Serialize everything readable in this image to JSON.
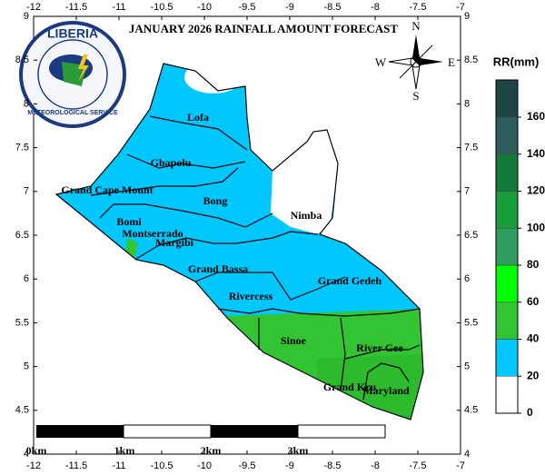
{
  "map": {
    "title": "JANUARY 2026 RAINFALL AMOUNT FORECAST",
    "lonlim": [
      -12,
      -7
    ],
    "lon_ticks": [
      -12,
      -11.5,
      -11,
      -10.5,
      -10,
      -9.5,
      -9,
      -8.5,
      -8,
      -7.5,
      -7
    ],
    "latlim": [
      4,
      9
    ],
    "lat_ticks": [
      4,
      4.5,
      5,
      5.5,
      6,
      6.5,
      7,
      7.5,
      8,
      8.5,
      9
    ],
    "logo": {
      "top": "LIBERIA",
      "bottom": "METEOROLOGICAL SERVICE"
    },
    "compass": {
      "n": "N",
      "e": "E",
      "s": "S",
      "w": "W"
    },
    "counties": [
      "Lofa",
      "Gbapolu",
      "Grand Cape Mount",
      "Bong",
      "Bomi",
      "Montserrado",
      "Margibi",
      "Nimba",
      "Grand Bassa",
      "Rivercess",
      "Grand Gedeh",
      "Sinoe",
      "River Gee",
      "Grand Kru",
      "Maryland"
    ],
    "scale_labels": [
      "0km",
      "1km",
      "2km",
      "3km"
    ],
    "legend": {
      "title": "RR(mm)",
      "ticks": [
        0,
        20,
        40,
        60,
        80,
        100,
        120,
        140,
        160
      ],
      "colors": [
        "#ffffff",
        "#00c8ff",
        "#33c433",
        "#00ff00",
        "#2e9e5e",
        "#179e3a",
        "#137a3a",
        "#2c5c5c",
        "#1f4444",
        "#2b2a0c"
      ]
    }
  }
}
